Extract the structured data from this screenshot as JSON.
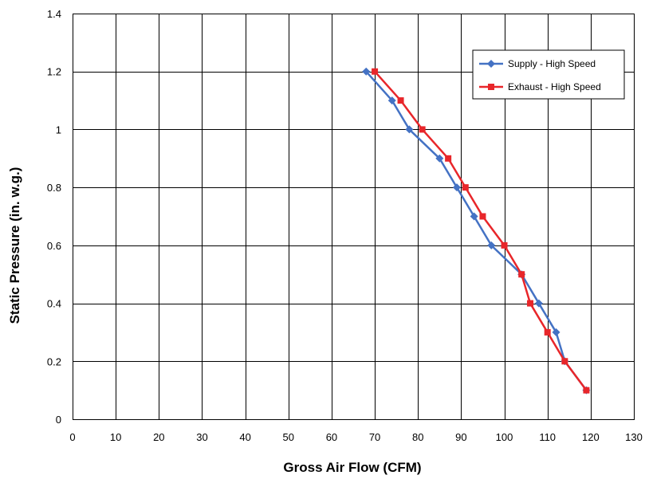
{
  "chart_data": {
    "type": "line",
    "title": "",
    "xlabel": "Gross Air Flow (CFM)",
    "ylabel": "Static Pressure (in. w.g.)",
    "xlim": [
      0,
      130
    ],
    "ylim": [
      0,
      1.4
    ],
    "x_ticks": [
      0,
      10,
      20,
      30,
      40,
      50,
      60,
      70,
      80,
      90,
      100,
      110,
      120,
      130
    ],
    "x_tick_labels": [
      "0",
      "10",
      "20",
      "30",
      "40",
      "50",
      "60",
      "70",
      "80",
      "90",
      "100",
      "110",
      "120",
      "130"
    ],
    "y_ticks": [
      0,
      0.2,
      0.4,
      0.6,
      0.8,
      1.0,
      1.2,
      1.4
    ],
    "y_tick_labels": [
      "0",
      "0.2",
      "0.4",
      "0.6",
      "0.8",
      "1",
      "1.2",
      "1.4"
    ],
    "grid": true,
    "legend_position": "top-right",
    "series": [
      {
        "name": "Supply - High Speed",
        "color": "#4472C4",
        "marker": "diamond",
        "x": [
          68,
          74,
          78,
          85,
          89,
          93,
          97,
          104,
          108,
          112,
          114,
          119
        ],
        "y": [
          1.2,
          1.1,
          1.0,
          0.9,
          0.8,
          0.7,
          0.6,
          0.5,
          0.4,
          0.3,
          0.2,
          0.1
        ]
      },
      {
        "name": "Exhaust - High Speed",
        "color": "#E8262A",
        "marker": "square",
        "x": [
          70,
          76,
          81,
          87,
          91,
          95,
          100,
          104,
          106,
          110,
          114,
          119
        ],
        "y": [
          1.2,
          1.1,
          1.0,
          0.9,
          0.8,
          0.7,
          0.6,
          0.5,
          0.4,
          0.3,
          0.2,
          0.1
        ]
      }
    ]
  }
}
